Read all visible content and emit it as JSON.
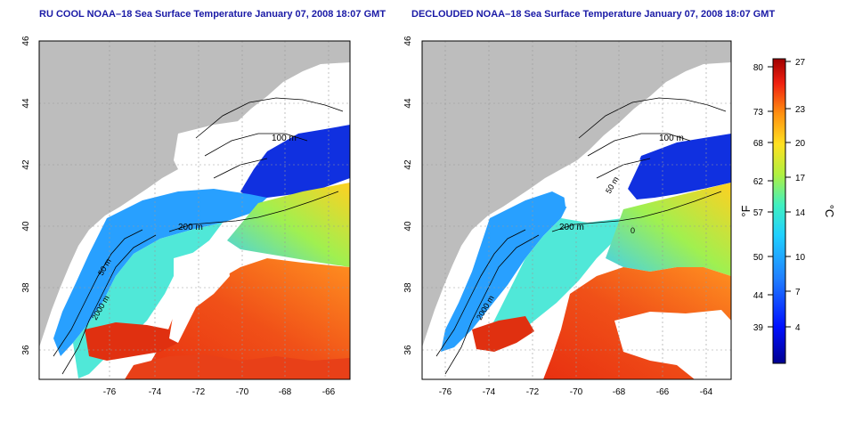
{
  "titles": {
    "left": "RU COOL NOAA–18 Sea Surface Temperature January 07, 2008 18:07 GMT",
    "right": "DECLOUDED NOAA–18 Sea Surface Temperature January 07, 2008 18:07 GMT"
  },
  "axes": {
    "lon_ticks": [
      "-76",
      "-74",
      "-72",
      "-70",
      "-68",
      "-66",
      "-64"
    ],
    "lat_ticks": [
      "46",
      "44",
      "42",
      "40",
      "38",
      "36"
    ]
  },
  "isobaths": [
    "100 m",
    "200 m",
    "50 m",
    "2000 m",
    "0"
  ],
  "colorbar": {
    "fahrenheit_label": "°F",
    "celsius_label": "°C",
    "fahrenheit_ticks": [
      "80",
      "73",
      "68",
      "62",
      "57",
      "50",
      "44",
      "39"
    ],
    "celsius_ticks": [
      "27",
      "23",
      "20",
      "17",
      "14",
      "10",
      "7",
      "4"
    ]
  },
  "colors": {
    "title": "#1a1aa6",
    "land": "#bdbdbd",
    "cold": "#0010c0",
    "cool": "#20a0ff",
    "mid": "#40e0c0",
    "warm": "#ffd020",
    "hot": "#e03010"
  }
}
